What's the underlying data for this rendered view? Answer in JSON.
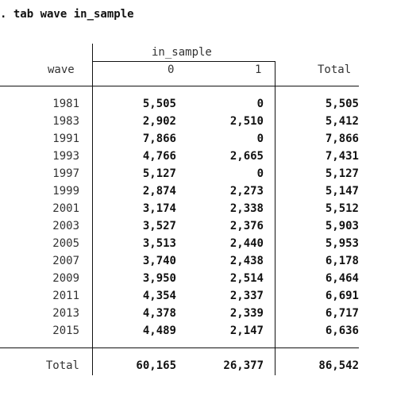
{
  "command": ". tab wave in_sample",
  "table": {
    "row_var": "wave",
    "col_var": "in_sample",
    "col_headers": [
      "0",
      "1"
    ],
    "total_header": "Total",
    "rows": [
      {
        "label": "1981",
        "values": [
          "5,505",
          "0",
          "5,505"
        ]
      },
      {
        "label": "1983",
        "values": [
          "2,902",
          "2,510",
          "5,412"
        ]
      },
      {
        "label": "1991",
        "values": [
          "7,866",
          "0",
          "7,866"
        ]
      },
      {
        "label": "1993",
        "values": [
          "4,766",
          "2,665",
          "7,431"
        ]
      },
      {
        "label": "1997",
        "values": [
          "5,127",
          "0",
          "5,127"
        ]
      },
      {
        "label": "1999",
        "values": [
          "2,874",
          "2,273",
          "5,147"
        ]
      },
      {
        "label": "2001",
        "values": [
          "3,174",
          "2,338",
          "5,512"
        ]
      },
      {
        "label": "2003",
        "values": [
          "3,527",
          "2,376",
          "5,903"
        ]
      },
      {
        "label": "2005",
        "values": [
          "3,513",
          "2,440",
          "5,953"
        ]
      },
      {
        "label": "2007",
        "values": [
          "3,740",
          "2,438",
          "6,178"
        ]
      },
      {
        "label": "2009",
        "values": [
          "3,950",
          "2,514",
          "6,464"
        ]
      },
      {
        "label": "2011",
        "values": [
          "4,354",
          "2,337",
          "6,691"
        ]
      },
      {
        "label": "2013",
        "values": [
          "4,378",
          "2,339",
          "6,717"
        ]
      },
      {
        "label": "2015",
        "values": [
          "4,489",
          "2,147",
          "6,636"
        ]
      }
    ],
    "total_row": {
      "label": "Total",
      "values": [
        "60,165",
        "26,377",
        "86,542"
      ]
    }
  }
}
